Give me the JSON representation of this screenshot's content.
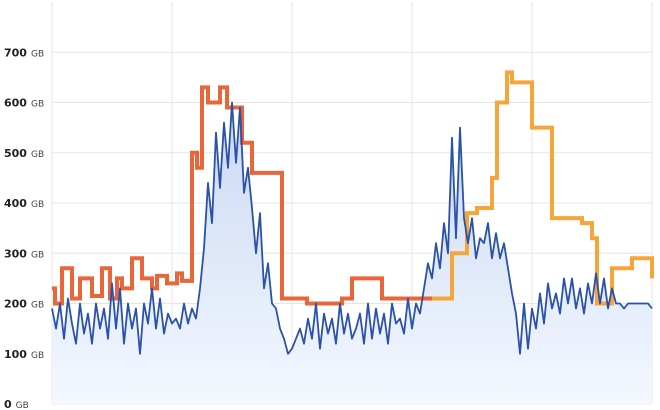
{
  "chart_data": {
    "type": "line",
    "title": "",
    "xlabel": "",
    "ylabel": "",
    "ylim": [
      0,
      800
    ],
    "yticks": [
      0,
      100,
      200,
      300,
      400,
      500,
      600,
      700
    ],
    "ytick_unit": "GB",
    "grid": true,
    "legend": "none",
    "colors": {
      "usage_line": "#2a52a8",
      "usage_fill_top": "#c9d8f3",
      "usage_fill_bottom": "#f4f8ff",
      "step_early": "#e8663a",
      "step_late": "#f5a53a",
      "grid": "#e6e6e6"
    },
    "x_range": [
      0,
      600
    ],
    "series": [
      {
        "kind": "area",
        "x": [
          0,
          4,
          8,
          12,
          16,
          20,
          24,
          28,
          32,
          36,
          40,
          44,
          48,
          52,
          56,
          60,
          64,
          68,
          72,
          76,
          80,
          84,
          88,
          92,
          96,
          100,
          104,
          108,
          112,
          116,
          120,
          124,
          128,
          132,
          136,
          140,
          144,
          148,
          152,
          156,
          160,
          164,
          168,
          172,
          176,
          180,
          184,
          188,
          192,
          196,
          200,
          204,
          208,
          212,
          216,
          220,
          224,
          228,
          232,
          236,
          240,
          244,
          248,
          252,
          256,
          260,
          264,
          268,
          272,
          276,
          280,
          284,
          288,
          292,
          296,
          300,
          304,
          308,
          312,
          316,
          320,
          324,
          328,
          332,
          336,
          340,
          344,
          348,
          352,
          356,
          360,
          364,
          368,
          372,
          376,
          380,
          384,
          388,
          392,
          396,
          400,
          404,
          408,
          412,
          416,
          420,
          424,
          428,
          432,
          436,
          440,
          444,
          448,
          452,
          456,
          460,
          464,
          468,
          472,
          476,
          480,
          484,
          488,
          492,
          496,
          500,
          504,
          508,
          512,
          516,
          520,
          524,
          528,
          532,
          536,
          540,
          544,
          548,
          552,
          556,
          560,
          564,
          568,
          572,
          576,
          580,
          584,
          588,
          592,
          596,
          600
        ],
        "values": [
          190,
          150,
          200,
          130,
          210,
          160,
          120,
          200,
          140,
          180,
          120,
          200,
          150,
          190,
          130,
          240,
          150,
          230,
          120,
          200,
          150,
          190,
          100,
          200,
          160,
          230,
          150,
          210,
          140,
          180,
          160,
          170,
          150,
          200,
          160,
          190,
          170,
          230,
          310,
          440,
          360,
          540,
          430,
          560,
          470,
          600,
          480,
          590,
          420,
          470,
          390,
          300,
          380,
          230,
          280,
          200,
          190,
          150,
          130,
          100,
          110,
          130,
          150,
          120,
          170,
          130,
          200,
          110,
          180,
          140,
          170,
          120,
          200,
          140,
          180,
          130,
          150,
          180,
          120,
          200,
          130,
          190,
          140,
          180,
          120,
          200,
          160,
          170,
          140,
          210,
          150,
          200,
          180,
          230,
          280,
          250,
          320,
          270,
          360,
          300,
          530,
          330,
          550,
          370,
          320,
          370,
          290,
          330,
          320,
          360,
          290,
          340,
          290,
          320,
          270,
          220,
          180,
          100,
          200,
          110,
          190,
          150,
          220,
          160,
          240,
          190,
          220,
          180,
          250,
          200,
          250,
          190,
          230,
          180,
          240,
          200,
          260,
          200,
          250,
          190,
          230,
          200,
          200,
          190,
          200,
          200,
          200,
          200,
          200,
          200,
          190
        ]
      },
      {
        "kind": "step",
        "segment": "early",
        "x": [
          0,
          3,
          10,
          20,
          28,
          40,
          50,
          58,
          65,
          70,
          80,
          90,
          100,
          105,
          115,
          125,
          130,
          140,
          145,
          150,
          156,
          168,
          175,
          190,
          200,
          215,
          230,
          255,
          265,
          290,
          300,
          330,
          350,
          380,
          400
        ],
        "values": [
          230,
          200,
          270,
          210,
          250,
          215,
          270,
          210,
          250,
          230,
          290,
          250,
          230,
          255,
          240,
          260,
          245,
          500,
          470,
          630,
          600,
          630,
          590,
          520,
          460,
          460,
          210,
          200,
          200,
          210,
          250,
          210,
          210,
          210,
          210
        ]
      },
      {
        "kind": "step",
        "segment": "late",
        "x": [
          380,
          400,
          415,
          425,
          440,
          445,
          455,
          460,
          468,
          480,
          490,
          500,
          510,
          520,
          530,
          540,
          545,
          560,
          570,
          580,
          600
        ],
        "values": [
          210,
          300,
          380,
          390,
          450,
          600,
          660,
          640,
          640,
          550,
          550,
          370,
          370,
          370,
          360,
          330,
          200,
          270,
          270,
          290,
          250
        ]
      }
    ]
  }
}
